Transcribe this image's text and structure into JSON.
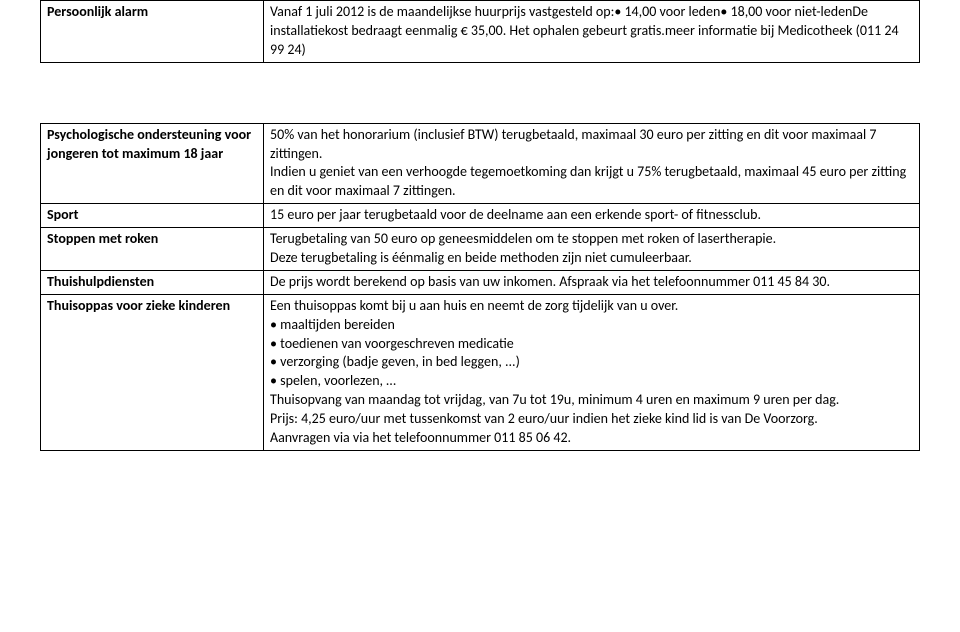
{
  "rows": {
    "persoonlijk_alarm": {
      "label": "Persoonlijk alarm",
      "content": "Vanaf 1 juli 2012 is de maandelijkse huurprijs vastgesteld op:• 14,00 voor leden• 18,00 voor niet-ledenDe installatiekost bedraagt eenmalig € 35,00. Het ophalen gebeurt gratis.meer informatie bij Medicotheek (011 24 99 24)"
    },
    "psychologische": {
      "label": "Psychologische ondersteuning voor jongeren tot maximum 18 jaar",
      "content": "50% van het honorarium (inclusief BTW) terugbetaald, maximaal 30 euro per zitting en dit voor maximaal 7 zittingen.\nIndien u geniet van een verhoogde tegemoetkoming dan krijgt u 75% terugbetaald, maximaal 45 euro per zitting en dit voor maximaal 7 zittingen."
    },
    "sport": {
      "label": "Sport",
      "content": "15 euro per jaar terugbetaald voor de deelname aan een erkende sport- of fitnessclub."
    },
    "stoppen": {
      "label": "Stoppen met roken",
      "content": "Terugbetaling van 50 euro op geneesmiddelen om te stoppen met roken of lasertherapie.\nDeze terugbetaling is éénmalig en beide methoden zijn niet cumuleerbaar."
    },
    "thuishulp": {
      "label": "Thuishulpdiensten",
      "content": "De prijs wordt berekend op basis van uw inkomen. Afspraak via het telefoonnummer 011 45 84 30."
    },
    "thuisoppas": {
      "label": "Thuisoppas voor zieke kinderen",
      "content": "Een thuisoppas komt bij u aan huis en neemt de zorg tijdelijk van u over.\n• maaltijden bereiden\n• toedienen van voorgeschreven medicatie\n• verzorging (badje geven, in bed leggen, ...)\n• spelen, voorlezen, …\nThuisopvang van maandag tot vrijdag, van 7u tot 19u, minimum 4 uren en maximum 9 uren per dag.\nPrijs: 4,25 euro/uur met tussenkomst van 2 euro/uur indien het zieke kind lid is van De Voorzorg.\nAanvragen via via het telefoonnummer 011 85 06 42."
    }
  }
}
